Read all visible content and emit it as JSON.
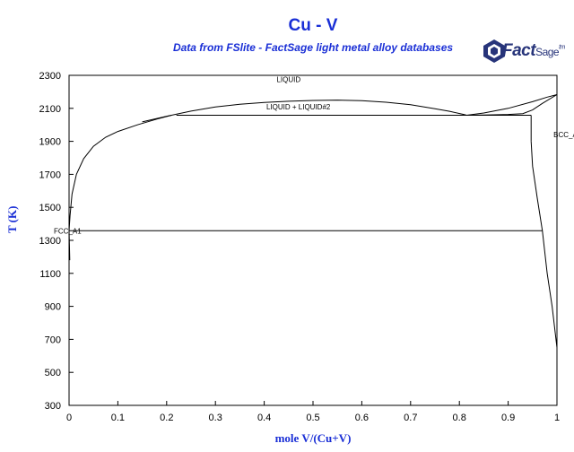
{
  "header": {
    "title": "Cu - V",
    "subtitle": "Data from FSlite - FactSage light metal alloy databases"
  },
  "logo": {
    "word_main": "Fact",
    "word_sage": "Sage",
    "word_tm": "tm",
    "color": "#27347a"
  },
  "colors": {
    "title": "#1a2fd6",
    "lines": "#000000",
    "background": "#ffffff"
  },
  "chart_data": {
    "type": "line",
    "title": "Cu - V",
    "subtitle": "Data from FSlite - FactSage light metal alloy databases",
    "xlabel": "mole V/(Cu+V)",
    "ylabel": "T (K)",
    "xlim": [
      0,
      1
    ],
    "ylim": [
      300,
      2300
    ],
    "x_ticks": [
      0,
      0.1,
      0.2,
      0.3,
      0.4,
      0.5,
      0.6,
      0.7,
      0.8,
      0.9,
      1
    ],
    "x_tick_labels": [
      "0",
      "0.1",
      "0.2",
      "0.3",
      "0.4",
      "0.5",
      "0.6",
      "0.7",
      "0.8",
      "0.9",
      "1"
    ],
    "y_ticks": [
      300,
      500,
      700,
      900,
      1100,
      1300,
      1500,
      1700,
      1900,
      2100,
      2300
    ],
    "y_tick_labels": [
      "300",
      "500",
      "700",
      "900",
      "1100",
      "1300",
      "1500",
      "1700",
      "1900",
      "2100",
      "2300"
    ],
    "grid": false,
    "series": [
      {
        "id": "liquidus-cu-side",
        "x": [
          0.0,
          0.002,
          0.006,
          0.015,
          0.03,
          0.05,
          0.075,
          0.1,
          0.14,
          0.18,
          0.21
        ],
        "y": [
          1358,
          1450,
          1580,
          1700,
          1795,
          1870,
          1925,
          1960,
          2000,
          2035,
          2058
        ]
      },
      {
        "id": "miscibility-gap",
        "x": [
          0.15,
          0.2,
          0.25,
          0.3,
          0.35,
          0.4,
          0.45,
          0.5,
          0.55,
          0.6,
          0.65,
          0.7,
          0.75,
          0.78,
          0.81,
          0.815
        ],
        "y": [
          2018,
          2052,
          2083,
          2108,
          2125,
          2136,
          2143,
          2148,
          2150,
          2146,
          2137,
          2122,
          2098,
          2082,
          2062,
          2058
        ]
      },
      {
        "id": "liquidus-v-side-upper",
        "x": [
          0.815,
          0.85,
          0.9,
          0.95,
          0.98,
          1.0
        ],
        "y": [
          2058,
          2072,
          2100,
          2140,
          2168,
          2183
        ]
      },
      {
        "id": "liquidus-v-side-lower",
        "x": [
          0.815,
          0.85,
          0.9,
          0.93,
          0.95,
          0.97,
          1.0
        ],
        "y": [
          2058,
          2060,
          2063,
          2068,
          2090,
          2130,
          2183
        ]
      },
      {
        "id": "monotectic",
        "x": [
          0.22,
          0.947
        ],
        "y": [
          2058,
          2058
        ]
      },
      {
        "id": "bcc-solvus-upper",
        "x": [
          0.947,
          0.947
        ],
        "y": [
          2058,
          1900
        ]
      },
      {
        "id": "bcc-solvus-lower",
        "x": [
          0.947,
          0.95,
          0.96,
          0.97,
          0.98,
          0.99,
          1.0
        ],
        "y": [
          1900,
          1750,
          1550,
          1360,
          1100,
          900,
          650
        ]
      },
      {
        "id": "eutectic",
        "x": [
          0.0,
          0.97
        ],
        "y": [
          1358,
          1358
        ]
      },
      {
        "id": "fcc-solvus",
        "x": [
          0.0,
          0.001,
          0.0015
        ],
        "y": [
          1358,
          1250,
          1180
        ]
      },
      {
        "id": "v-edge",
        "x": [
          1.0,
          1.0
        ],
        "y": [
          2183,
          650
        ]
      }
    ],
    "annotations": [
      {
        "text": "LIQUID",
        "x": 0.45,
        "y": 2260
      },
      {
        "text": "LIQUID + LIQUID#2",
        "x": 0.47,
        "y": 2093
      },
      {
        "text": "BCC_A2",
        "x": 0.98,
        "y": 1925
      },
      {
        "text": "FCC_A1",
        "x": 0.0,
        "y": 1340
      }
    ]
  }
}
